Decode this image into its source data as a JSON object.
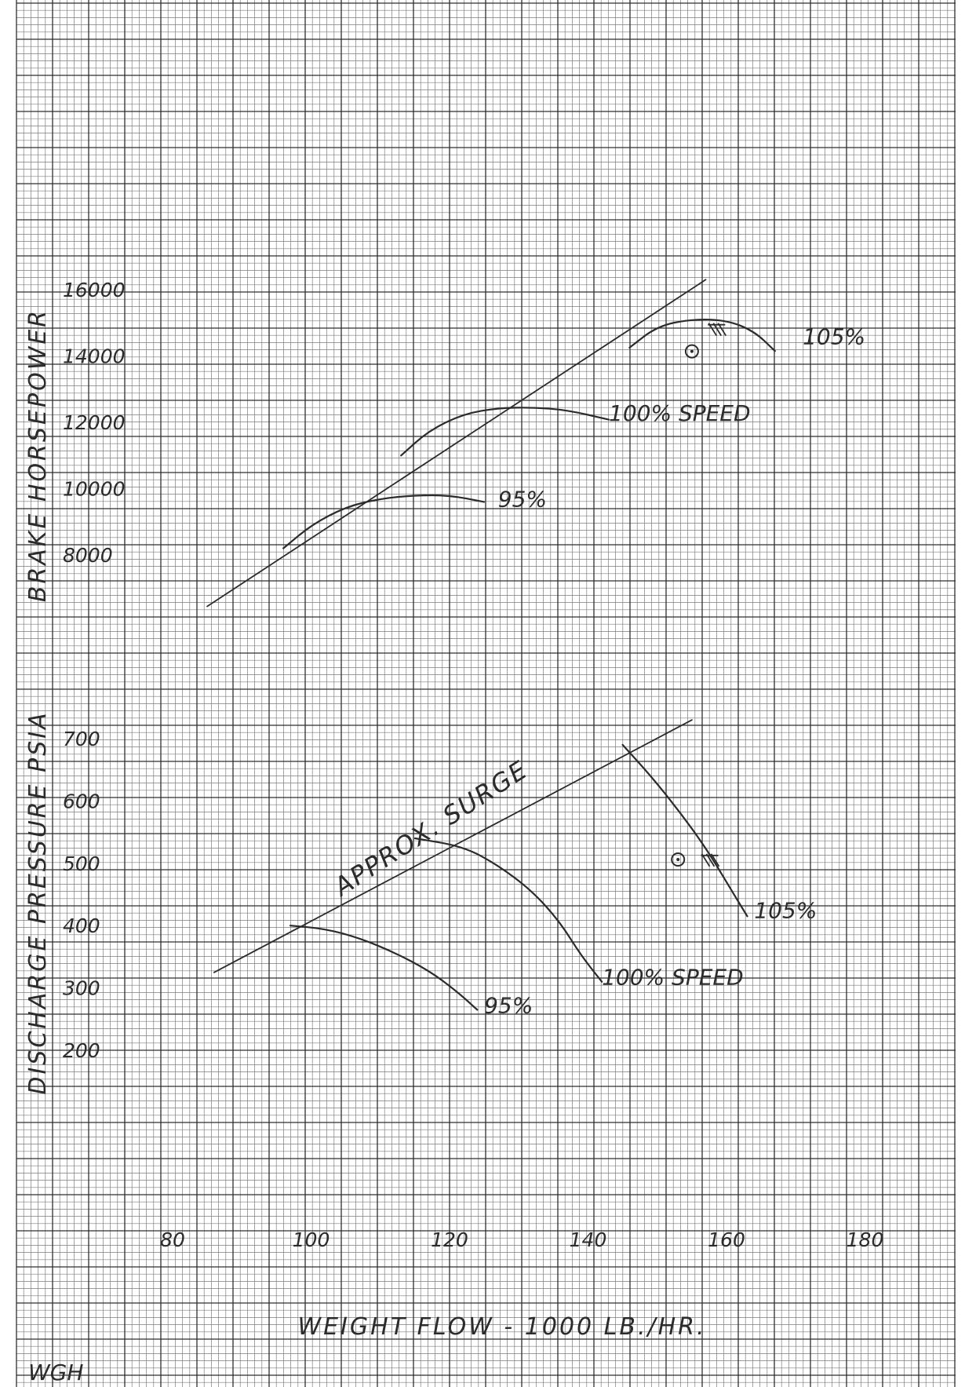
{
  "colors": {
    "paper": "#ffffff",
    "grid_fine": "#7d7d7d",
    "grid_bold": "#2e2e2e",
    "ink": "#2b2b2b"
  },
  "chart_data": [
    {
      "type": "line",
      "title": "",
      "xlabel": "WEIGHT FLOW - 1000 LB./HR.",
      "ylabel": "BRAKE HORSEPOWER",
      "xlim": [
        70,
        190
      ],
      "ylim": [
        6000,
        17000
      ],
      "y_ticks": [
        8000,
        10000,
        12000,
        14000,
        16000
      ],
      "y_tick_labels": [
        "8000",
        "10000",
        "12000",
        "14000",
        "16000"
      ],
      "grid": true,
      "series": [
        {
          "name": "95%",
          "points": [
            [
              96,
              8200
            ],
            [
              100,
              8900
            ],
            [
              105,
              9450
            ],
            [
              110,
              9700
            ],
            [
              115,
              9800
            ],
            [
              120,
              9800
            ],
            [
              125,
              9600
            ]
          ]
        },
        {
          "name": "100% SPEED",
          "points": [
            [
              113,
              11000
            ],
            [
              117,
              11750
            ],
            [
              122,
              12250
            ],
            [
              127,
              12430
            ],
            [
              132,
              12450
            ],
            [
              137,
              12370
            ],
            [
              143,
              12080
            ]
          ]
        },
        {
          "name": "105%",
          "points": [
            [
              146,
              14250
            ],
            [
              150,
              14900
            ],
            [
              155,
              15110
            ],
            [
              160,
              15080
            ],
            [
              164,
              14750
            ],
            [
              167,
              14150
            ]
          ]
        },
        {
          "name": "surge line",
          "points": [
            [
              85,
              6450
            ],
            [
              157,
              16300
            ]
          ]
        }
      ],
      "annotations": [
        {
          "text": "95%",
          "at": [
            127,
            9450
          ]
        },
        {
          "text": "100% SPEED",
          "at": [
            143,
            12050
          ]
        },
        {
          "text": "105%",
          "at": [
            171,
            14350
          ]
        }
      ],
      "markers": [
        {
          "type": "circled-point",
          "at": [
            155,
            14140
          ]
        },
        {
          "type": "hatch",
          "at": [
            158,
            14800
          ]
        }
      ]
    },
    {
      "type": "line",
      "title": "",
      "xlabel": "WEIGHT FLOW - 1000 LB./HR.",
      "ylabel": "DISCHARGE PRESSURE PSIA",
      "xlim": [
        70,
        190
      ],
      "ylim": [
        150,
        750
      ],
      "x_ticks": [
        80,
        100,
        120,
        140,
        160,
        180
      ],
      "x_tick_labels": [
        "80",
        "100",
        "120",
        "140",
        "160",
        "180"
      ],
      "y_ticks": [
        200,
        300,
        400,
        500,
        600,
        700
      ],
      "y_tick_labels": [
        "200",
        "300",
        "400",
        "500",
        "600",
        "700"
      ],
      "grid": true,
      "series": [
        {
          "name": "95%",
          "points": [
            [
              97,
              400
            ],
            [
              102,
              395
            ],
            [
              107,
              380
            ],
            [
              112,
              357
            ],
            [
              117,
              328
            ],
            [
              121,
              295
            ],
            [
              124,
              265
            ]
          ]
        },
        {
          "name": "100% SPEED",
          "points": [
            [
              115,
              540
            ],
            [
              122,
              527
            ],
            [
              127,
              497
            ],
            [
              132,
              455
            ],
            [
              136,
              405
            ],
            [
              139,
              352
            ],
            [
              142,
              310
            ]
          ]
        },
        {
          "name": "105%",
          "points": [
            [
              145,
              690
            ],
            [
              149,
              641
            ],
            [
              153,
              586
            ],
            [
              157,
              525
            ],
            [
              160,
              470
            ],
            [
              163,
              415
            ]
          ]
        },
        {
          "name": "surge line",
          "points": [
            [
              86,
              325
            ],
            [
              155,
              730
            ]
          ]
        }
      ],
      "annotations": [
        {
          "text": "APPROX. SURGE",
          "at": [
            118,
            545
          ]
        },
        {
          "text": "95%",
          "at": [
            125,
            260
          ]
        },
        {
          "text": "100% SPEED",
          "at": [
            142,
            305
          ]
        },
        {
          "text": "105%",
          "at": [
            164,
            412
          ]
        }
      ],
      "markers": [
        {
          "type": "circled-point",
          "at": [
            153,
            506
          ]
        },
        {
          "type": "hatch",
          "at": [
            157,
            505
          ]
        }
      ]
    }
  ],
  "y_axis_titles": {
    "upper": "BRAKE HORSEPOWER",
    "lower": "DISCHARGE PRESSURE PSIA"
  },
  "x_axis_title": "WEIGHT FLOW - 1000 LB./HR.",
  "initials": "WGH"
}
